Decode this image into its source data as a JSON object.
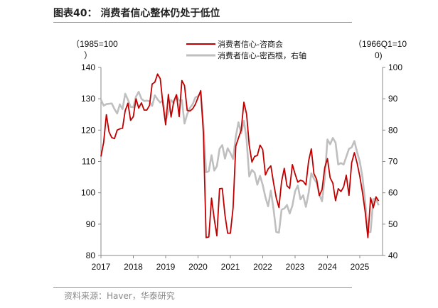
{
  "header": {
    "title": "图表40： 消费者信心整体仍处于低位",
    "source": "资料来源：Haver，华泰研究"
  },
  "chart_data": {
    "type": "line",
    "title": "图表40： 消费者信心整体仍处于低位",
    "start": "2017-01",
    "frequency": "monthly",
    "x_ticks": [
      "2017",
      "2018",
      "2019",
      "2020",
      "2021",
      "2022",
      "2023",
      "2024",
      "2025"
    ],
    "left_axis": {
      "label": "（1985=100）",
      "label_lines": [
        "（1985=100",
        "）"
      ],
      "ylim": [
        80,
        140
      ],
      "ticks": [
        80,
        90,
        100,
        110,
        120,
        130,
        140
      ]
    },
    "right_axis": {
      "label": "（1966Q1=100）",
      "label_lines": [
        "（1966Q1=10",
        "0)"
      ],
      "ylim": [
        40,
        100
      ],
      "ticks": [
        40,
        50,
        60,
        70,
        80,
        90,
        100
      ]
    },
    "legend_placement": "top-center",
    "grid": false,
    "series": [
      {
        "name": "消费者信心-咨商会",
        "axis": "left",
        "color": "#c00000",
        "values": [
          111.6,
          116.1,
          124.9,
          119.4,
          117.6,
          117.3,
          120.0,
          120.4,
          120.6,
          126.2,
          128.6,
          123.1,
          124.3,
          130.0,
          127.0,
          128.7,
          126.4,
          126.4,
          127.9,
          134.7,
          135.3,
          137.9,
          136.4,
          128.1,
          121.7,
          131.4,
          124.2,
          129.2,
          131.3,
          124.3,
          135.8,
          134.2,
          126.3,
          126.1,
          126.8,
          128.2,
          130.4,
          132.6,
          118.8,
          85.7,
          85.9,
          98.3,
          91.7,
          86.3,
          101.3,
          101.4,
          92.9,
          87.1,
          87.1,
          95.2,
          114.9,
          117.5,
          120.0,
          128.9,
          125.1,
          115.2,
          109.8,
          111.6,
          111.9,
          115.2,
          113.8,
          105.7,
          107.6,
          108.6,
          103.2,
          98.4,
          95.3,
          103.6,
          107.8,
          102.2,
          101.4,
          109.0,
          106.0,
          103.4,
          104.0,
          103.7,
          102.5,
          110.1,
          114.0,
          106.1,
          104.3,
          99.1,
          101.0,
          108.0,
          110.9,
          104.8,
          103.1,
          97.5,
          101.3,
          100.4,
          101.9,
          105.6,
          99.2,
          109.6,
          112.8,
          109.5,
          105.3,
          100.1,
          93.9,
          85.7,
          98.4,
          95.2,
          98.7,
          97.4
        ]
      },
      {
        "name": "消费者信心-密西根，右轴",
        "axis": "right",
        "color": "#bfbfbf",
        "values": [
          89.7,
          87.8,
          88.3,
          88.4,
          88.5,
          86.7,
          85.3,
          88.2,
          86.7,
          91.6,
          89.7,
          87.4,
          87.3,
          90.7,
          92.2,
          90.0,
          89.3,
          89.4,
          89.2,
          87.7,
          91.1,
          89.8,
          88.8,
          89.5,
          83.3,
          85.6,
          89.6,
          88.6,
          91.0,
          89.4,
          89.6,
          82.1,
          85.1,
          87.1,
          88.2,
          90.4,
          90.8,
          91.9,
          81.5,
          66.5,
          66.9,
          72.0,
          67.1,
          68.5,
          74.0,
          75.2,
          70.9,
          74.2,
          72.7,
          70.8,
          77.9,
          82.5,
          79.0,
          83.0,
          77.0,
          65.2,
          67.3,
          66.4,
          62.6,
          65.4,
          62.5,
          58.6,
          55.7,
          60.7,
          54.8,
          47.5,
          47.3,
          54.6,
          55.0,
          56.1,
          53.4,
          55.9,
          60.5,
          62.3,
          57.9,
          59.2,
          55.5,
          59.9,
          66.2,
          64.5,
          63.2,
          59.5,
          57.3,
          64.6,
          77.0,
          75.5,
          77.5,
          76.0,
          69.0,
          69.5,
          69.0,
          71.5,
          74.0,
          74.5,
          76.5,
          73.0,
          70.0,
          65.0,
          57.0,
          47.5,
          47.5,
          58.0,
          58.0,
          56.0
        ]
      }
    ]
  }
}
